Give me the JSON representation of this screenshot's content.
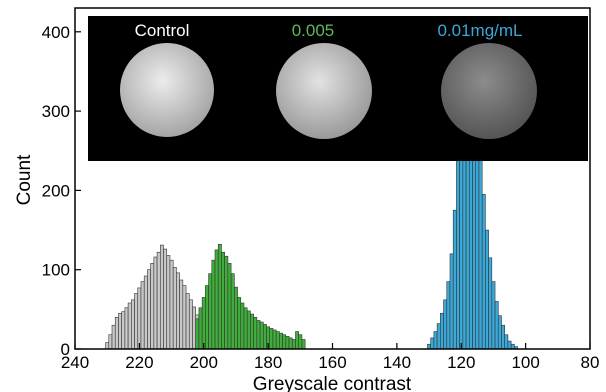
{
  "chart_data": {
    "type": "bar",
    "title": "",
    "xlabel": "Greyscale contrast",
    "ylabel": "Count",
    "xlim": [
      240,
      80
    ],
    "ylim": [
      0,
      430
    ],
    "x_reversed": true,
    "x_ticks": [
      240,
      220,
      200,
      180,
      160,
      140,
      120,
      100,
      80
    ],
    "y_ticks": [
      0,
      100,
      200,
      300,
      400
    ],
    "grid": false,
    "bin_width": 1,
    "series": [
      {
        "name": "Control",
        "color": "#c8c8c8",
        "x": [
          230,
          229,
          228,
          227,
          226,
          225,
          224,
          223,
          222,
          221,
          220,
          219,
          218,
          217,
          216,
          215,
          214,
          213,
          212,
          211,
          210,
          209,
          208,
          207,
          206,
          205,
          204,
          203,
          202,
          201,
          200
        ],
        "values": [
          8,
          18,
          30,
          40,
          45,
          47,
          52,
          58,
          62,
          70,
          77,
          85,
          92,
          100,
          108,
          116,
          122,
          131,
          126,
          118,
          112,
          103,
          96,
          87,
          80,
          70,
          62,
          53,
          43,
          33,
          22
        ]
      },
      {
        "name": "0.005",
        "color": "#3fae3a",
        "x": [
          202,
          201,
          200,
          199,
          198,
          197,
          196,
          195,
          194,
          193,
          192,
          191,
          190,
          189,
          188,
          187,
          186,
          185,
          184,
          183,
          182,
          181,
          180,
          179,
          178,
          177,
          176,
          175,
          174,
          173,
          172,
          171,
          170,
          169
        ],
        "values": [
          38,
          52,
          65,
          80,
          95,
          112,
          125,
          132,
          122,
          117,
          108,
          95,
          78,
          65,
          58,
          52,
          48,
          44,
          40,
          36,
          34,
          31,
          28,
          26,
          24,
          22,
          20,
          18,
          16,
          14,
          12,
          22,
          18,
          12
        ]
      },
      {
        "name": "0.01mg/mL",
        "color": "#3aa8d8",
        "x": [
          130,
          129,
          128,
          127,
          126,
          125,
          124,
          123,
          122,
          121,
          120,
          119,
          118,
          117,
          116,
          115,
          114,
          113,
          112,
          111,
          110,
          109,
          108,
          107,
          106,
          105,
          104,
          103
        ],
        "values": [
          6,
          14,
          22,
          32,
          45,
          62,
          85,
          120,
          175,
          240,
          310,
          380,
          410,
          395,
          365,
          330,
          240,
          195,
          150,
          115,
          85,
          60,
          42,
          30,
          18,
          10,
          6,
          3
        ]
      }
    ],
    "inset": {
      "labels": [
        {
          "text": "Control",
          "color": "#ffffff"
        },
        {
          "text": "0.005",
          "color": "#5cb85c"
        },
        {
          "text": "0.01mg/mL",
          "color": "#3aa8d8"
        }
      ],
      "disc_colors": [
        "#d9d9d9",
        "#cfcfcf",
        "#808080"
      ],
      "background": "#000000"
    }
  }
}
